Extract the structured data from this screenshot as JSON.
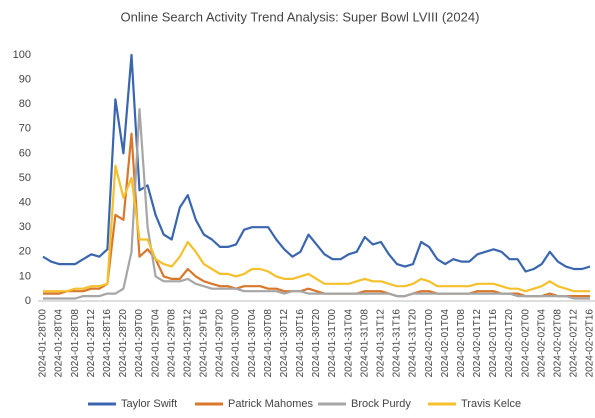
{
  "chart_data": {
    "type": "line",
    "title": "Online Search Activity Trend Analysis: Super Bowl LVIII (2024)",
    "categories": [
      "2024-01-28T00",
      null,
      "2024-01-28T04",
      null,
      "2024-01-28T08",
      null,
      "2024-01-28T12",
      null,
      "2024-01-28T16",
      null,
      "2024-01-28T20",
      null,
      "2024-01-29T00",
      null,
      "2024-01-29T04",
      null,
      "2024-01-29T08",
      null,
      "2024-01-29T12",
      null,
      "2024-01-29T16",
      null,
      "2024-01-29T20",
      null,
      "2024-01-30T00",
      null,
      "2024-01-30T04",
      null,
      "2024-01-30T08",
      null,
      "2024-01-30T12",
      null,
      "2024-01-30T16",
      null,
      "2024-01-30T20",
      null,
      "2024-01-31T00",
      null,
      "2024-01-31T04",
      null,
      "2024-01-31T08",
      null,
      "2024-01-31T12",
      null,
      "2024-01-31T16",
      null,
      "2024-01-31T20",
      null,
      "2024-02-01T00",
      null,
      "2024-02-01T04",
      null,
      "2024-02-01T08",
      null,
      "2024-02-01T12",
      null,
      "2024-02-01T16",
      null,
      "2024-02-01T20",
      null,
      "2024-02-02T00",
      null,
      "2024-02-02T04",
      null,
      "2024-02-02T08",
      null,
      "2024-02-02T12",
      null,
      "2024-02-02T16"
    ],
    "series": [
      {
        "name": "Taylor Swift",
        "color": "#3a66b0",
        "values": [
          18,
          16,
          15,
          15,
          15,
          17,
          19,
          18,
          21,
          82,
          60,
          100,
          45,
          47,
          35,
          27,
          25,
          38,
          43,
          33,
          27,
          25,
          22,
          22,
          23,
          29,
          30,
          30,
          30,
          25,
          21,
          18,
          20,
          27,
          23,
          19,
          17,
          17,
          19,
          20,
          26,
          23,
          24,
          19,
          15,
          14,
          15,
          24,
          22,
          17,
          15,
          17,
          16,
          16,
          19,
          20,
          21,
          20,
          17,
          17,
          12,
          13,
          15,
          20,
          16,
          14,
          13,
          13,
          14
        ]
      },
      {
        "name": "Patrick Mahomes",
        "color": "#d9772b",
        "values": [
          3,
          3,
          3,
          4,
          4,
          4,
          5,
          5,
          7,
          35,
          33,
          68,
          18,
          21,
          17,
          10,
          9,
          9,
          13,
          10,
          8,
          7,
          6,
          6,
          5,
          6,
          6,
          6,
          5,
          5,
          4,
          4,
          4,
          5,
          4,
          3,
          3,
          3,
          3,
          3,
          4,
          4,
          4,
          3,
          2,
          2,
          3,
          4,
          4,
          3,
          3,
          3,
          3,
          3,
          4,
          4,
          4,
          3,
          3,
          3,
          2,
          2,
          2,
          3,
          2,
          2,
          2,
          2,
          2
        ]
      },
      {
        "name": "Brock Purdy",
        "color": "#a6a6a6",
        "values": [
          1,
          1,
          1,
          1,
          1,
          2,
          2,
          2,
          3,
          3,
          5,
          20,
          78,
          30,
          10,
          8,
          8,
          8,
          9,
          7,
          6,
          5,
          5,
          5,
          5,
          4,
          4,
          4,
          4,
          4,
          3,
          4,
          4,
          3,
          3,
          3,
          3,
          3,
          3,
          3,
          3,
          3,
          3,
          3,
          2,
          2,
          3,
          3,
          3,
          3,
          3,
          3,
          3,
          3,
          3,
          3,
          3,
          3,
          3,
          2,
          2,
          2,
          2,
          2,
          2,
          2,
          1,
          1,
          1
        ]
      },
      {
        "name": "Travis Kelce",
        "color": "#f5c02c",
        "values": [
          4,
          4,
          4,
          4,
          5,
          5,
          6,
          6,
          7,
          55,
          42,
          50,
          25,
          25,
          17,
          15,
          14,
          18,
          24,
          20,
          15,
          13,
          11,
          11,
          10,
          11,
          13,
          13,
          12,
          10,
          9,
          9,
          10,
          11,
          9,
          7,
          7,
          7,
          7,
          8,
          9,
          8,
          8,
          7,
          6,
          6,
          7,
          9,
          8,
          6,
          6,
          6,
          6,
          6,
          7,
          7,
          7,
          6,
          5,
          5,
          4,
          5,
          6,
          8,
          6,
          5,
          4,
          4,
          4
        ]
      }
    ],
    "ylim": [
      0,
      100
    ],
    "yticks": [
      0,
      10,
      20,
      30,
      40,
      50,
      60,
      70,
      80,
      90,
      100
    ],
    "grid": false,
    "legend": "bottom"
  }
}
